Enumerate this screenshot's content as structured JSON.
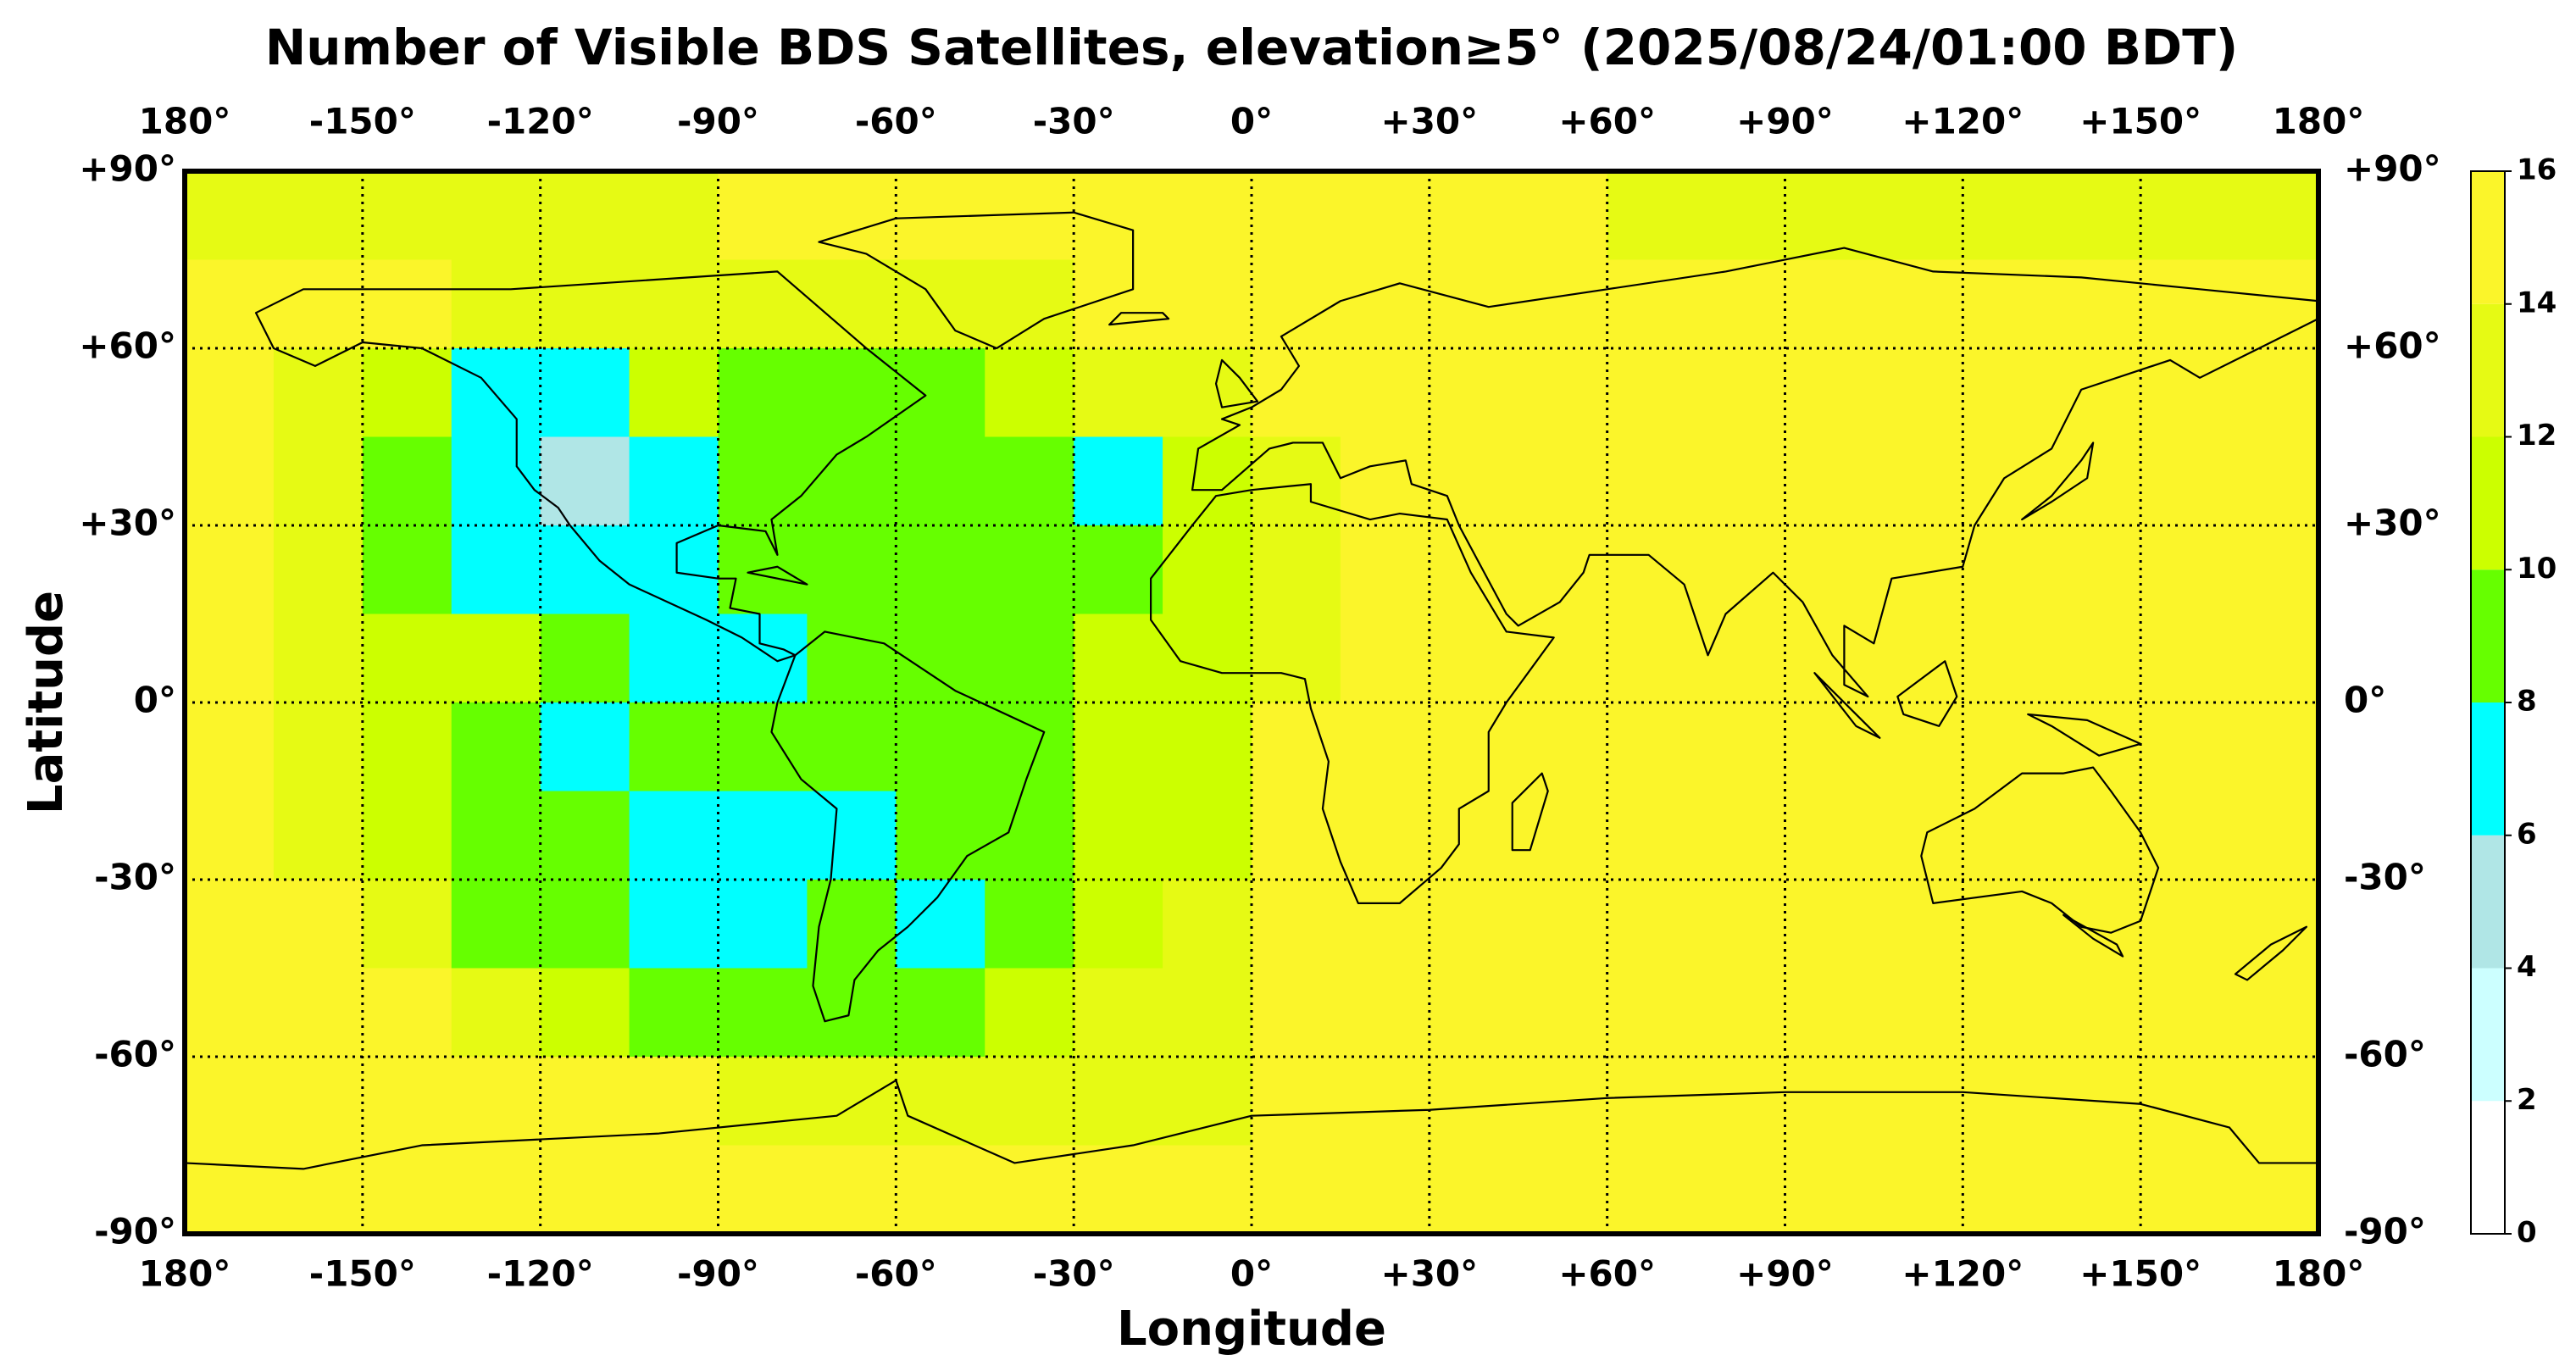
{
  "chart_data": {
    "type": "heatmap",
    "title": "Number of Visible BDS Satellites, elevation≥5° (2025/08/24/01:00 BDT)",
    "xlabel": "Longitude",
    "ylabel": "Latitude",
    "xlim": [
      -180,
      180
    ],
    "ylim": [
      -90,
      90
    ],
    "xticks": [
      {
        "value": -180,
        "label": "180°"
      },
      {
        "value": -150,
        "label": "-150°"
      },
      {
        "value": -120,
        "label": "-120°"
      },
      {
        "value": -90,
        "label": "-90°"
      },
      {
        "value": -60,
        "label": "-60°"
      },
      {
        "value": -30,
        "label": "-30°"
      },
      {
        "value": 0,
        "label": "0°"
      },
      {
        "value": 30,
        "label": "+30°"
      },
      {
        "value": 60,
        "label": "+60°"
      },
      {
        "value": 90,
        "label": "+90°"
      },
      {
        "value": 120,
        "label": "+120°"
      },
      {
        "value": 150,
        "label": "+150°"
      },
      {
        "value": 180,
        "label": "180°"
      }
    ],
    "yticks": [
      {
        "value": 90,
        "label": "+90°"
      },
      {
        "value": 60,
        "label": "+60°"
      },
      {
        "value": 30,
        "label": "+30°"
      },
      {
        "value": 0,
        "label": "0°"
      },
      {
        "value": -30,
        "label": "-30°"
      },
      {
        "value": -60,
        "label": "-60°"
      },
      {
        "value": -90,
        "label": "-90°"
      }
    ],
    "grid": true,
    "colorbar": {
      "ticks": [
        0,
        2,
        4,
        6,
        8,
        10,
        12,
        14,
        16
      ],
      "colors": [
        "#ffffff",
        "#ccffff",
        "#b0e6e6",
        "#00ffff",
        "#66ff00",
        "#ccff00",
        "#e6fa14",
        "#fbf52a"
      ]
    },
    "values": [
      [
        13,
        13,
        13,
        13,
        13,
        13,
        15,
        15,
        15,
        15,
        15,
        15,
        15,
        15,
        15,
        15,
        13,
        13,
        13,
        13,
        13,
        13,
        13,
        13
      ],
      [
        15,
        15,
        15,
        13,
        13,
        13,
        13,
        13,
        13,
        13,
        15,
        15,
        15,
        15,
        15,
        15,
        15,
        15,
        15,
        15,
        15,
        15,
        15,
        15
      ],
      [
        15,
        13,
        11,
        7,
        7,
        11,
        9,
        9,
        9,
        11,
        13,
        13,
        15,
        15,
        15,
        15,
        15,
        15,
        15,
        15,
        15,
        15,
        15,
        15
      ],
      [
        15,
        13,
        9,
        7,
        5,
        7,
        9,
        9,
        9,
        9,
        7,
        11,
        13,
        15,
        15,
        15,
        15,
        15,
        15,
        15,
        15,
        15,
        15,
        15
      ],
      [
        15,
        13,
        9,
        7,
        7,
        7,
        9,
        9,
        9,
        9,
        9,
        11,
        13,
        15,
        15,
        15,
        15,
        15,
        15,
        15,
        15,
        15,
        15,
        15
      ],
      [
        15,
        13,
        11,
        11,
        9,
        7,
        7,
        9,
        9,
        9,
        11,
        11,
        13,
        15,
        15,
        15,
        15,
        15,
        15,
        15,
        15,
        15,
        15,
        15
      ],
      [
        15,
        13,
        11,
        9,
        7,
        9,
        9,
        9,
        9,
        9,
        11,
        11,
        15,
        15,
        15,
        15,
        15,
        15,
        15,
        15,
        15,
        15,
        15,
        15
      ],
      [
        15,
        13,
        11,
        9,
        9,
        7,
        7,
        7,
        9,
        9,
        11,
        11,
        15,
        15,
        15,
        15,
        15,
        15,
        15,
        15,
        15,
        15,
        15,
        15
      ],
      [
        15,
        15,
        13,
        9,
        9,
        7,
        7,
        9,
        7,
        9,
        11,
        13,
        15,
        15,
        15,
        15,
        15,
        15,
        15,
        15,
        15,
        15,
        15,
        15
      ],
      [
        15,
        15,
        15,
        13,
        11,
        9,
        9,
        9,
        9,
        11,
        13,
        13,
        15,
        15,
        15,
        15,
        15,
        15,
        15,
        15,
        15,
        15,
        15,
        15
      ],
      [
        15,
        15,
        15,
        15,
        15,
        15,
        13,
        13,
        13,
        13,
        13,
        13,
        15,
        15,
        15,
        15,
        15,
        15,
        15,
        15,
        15,
        15,
        15,
        15
      ],
      [
        15,
        15,
        15,
        15,
        15,
        15,
        15,
        15,
        15,
        15,
        15,
        15,
        15,
        15,
        15,
        15,
        15,
        15,
        15,
        15,
        15,
        15,
        15,
        15
      ]
    ]
  }
}
